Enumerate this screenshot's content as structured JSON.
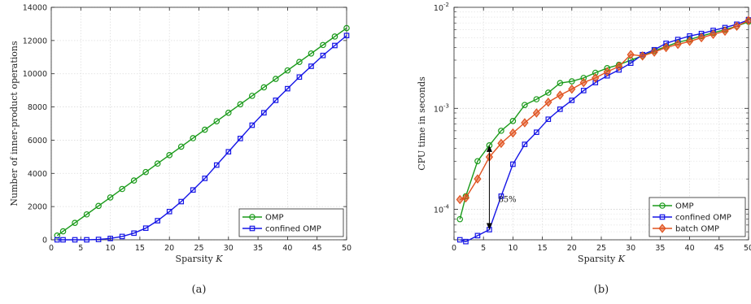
{
  "chart_data": [
    {
      "type": "line",
      "panel_label": "(a)",
      "xlabel": "Sparsity K",
      "ylabel": "Number of inner-product operations",
      "xlim": [
        0,
        50
      ],
      "ylim": [
        0,
        14000
      ],
      "xticks": [
        0,
        5,
        10,
        15,
        20,
        25,
        30,
        35,
        40,
        45,
        50
      ],
      "yticks": [
        0,
        2000,
        4000,
        6000,
        8000,
        10000,
        12000,
        14000
      ],
      "xtick_labels": [
        "0",
        "5",
        "10",
        "15",
        "20",
        "25",
        "30",
        "35",
        "40",
        "45",
        "50"
      ],
      "ytick_labels": [
        "0",
        "2000",
        "4000",
        "6000",
        "8000",
        "10000",
        "12000",
        "14000"
      ],
      "grid": true,
      "legend_position": "bottom-right",
      "series": [
        {
          "name": "OMP",
          "color": "#1a9a1a",
          "marker": "circle",
          "x": [
            1,
            2,
            4,
            6,
            8,
            10,
            12,
            14,
            16,
            18,
            20,
            22,
            24,
            26,
            28,
            30,
            32,
            34,
            36,
            38,
            40,
            42,
            44,
            46,
            48,
            50
          ],
          "y": [
            255,
            510,
            1020,
            1530,
            2040,
            2550,
            3060,
            3570,
            4080,
            4590,
            5100,
            5610,
            6120,
            6630,
            7140,
            7650,
            8160,
            8670,
            9180,
            9690,
            10200,
            10710,
            11220,
            11730,
            12240,
            12750
          ]
        },
        {
          "name": "confined OMP",
          "color": "#1515e6",
          "marker": "square",
          "x": [
            1,
            2,
            4,
            6,
            8,
            10,
            12,
            14,
            16,
            18,
            20,
            22,
            24,
            26,
            28,
            30,
            32,
            34,
            36,
            38,
            40,
            42,
            44,
            46,
            48,
            50
          ],
          "y": [
            0,
            0,
            0,
            0,
            20,
            80,
            200,
            400,
            700,
            1150,
            1700,
            2300,
            3000,
            3700,
            4500,
            5300,
            6100,
            6900,
            7650,
            8400,
            9100,
            9800,
            10450,
            11100,
            11700,
            12300
          ]
        }
      ]
    },
    {
      "type": "line",
      "panel_label": "(b)",
      "xlabel": "Sparsity K",
      "ylabel": "CPU time in seconds",
      "yscale": "log",
      "xlim": [
        0,
        50
      ],
      "ylim": [
        5e-05,
        0.01
      ],
      "xticks": [
        0,
        5,
        10,
        15,
        20,
        25,
        30,
        35,
        40,
        45,
        50
      ],
      "xtick_labels": [
        "0",
        "5",
        "10",
        "15",
        "20",
        "25",
        "30",
        "35",
        "40",
        "45",
        "50"
      ],
      "ytick_labels": [
        "10-4",
        "10-3",
        "10-2"
      ],
      "grid": true,
      "legend_position": "bottom-right",
      "annotation": "85%",
      "series": [
        {
          "name": "OMP",
          "color": "#1a9a1a",
          "marker": "circle",
          "x": [
            1,
            2,
            4,
            6,
            8,
            10,
            12,
            14,
            16,
            18,
            20,
            22,
            24,
            26,
            28,
            30,
            32,
            34,
            36,
            38,
            40,
            42,
            44,
            46,
            48,
            50
          ],
          "y": [
            8e-05,
            0.000135,
            0.0003,
            0.00043,
            0.0006,
            0.00075,
            0.00108,
            0.00123,
            0.00143,
            0.00178,
            0.00185,
            0.002,
            0.00225,
            0.0025,
            0.0027,
            0.003,
            0.0033,
            0.0037,
            0.0041,
            0.0045,
            0.0048,
            0.0052,
            0.0056,
            0.006,
            0.0065,
            0.0072
          ]
        },
        {
          "name": "confined OMP",
          "color": "#1515e6",
          "marker": "square",
          "x": [
            1,
            2,
            4,
            6,
            8,
            10,
            12,
            14,
            16,
            18,
            20,
            22,
            24,
            26,
            28,
            30,
            32,
            34,
            36,
            38,
            40,
            42,
            44,
            46,
            48,
            50
          ],
          "y": [
            5e-05,
            4.8e-05,
            5.5e-05,
            6.3e-05,
            0.000135,
            0.00028,
            0.00044,
            0.00058,
            0.00078,
            0.00098,
            0.0012,
            0.0015,
            0.0018,
            0.0021,
            0.0024,
            0.0028,
            0.0034,
            0.0038,
            0.0044,
            0.0048,
            0.0052,
            0.0055,
            0.0059,
            0.0063,
            0.0068,
            0.0075
          ]
        },
        {
          "name": "batch OMP",
          "color": "#e0521f",
          "marker": "diamond",
          "x": [
            1,
            2,
            4,
            6,
            8,
            10,
            12,
            14,
            16,
            18,
            20,
            22,
            24,
            26,
            28,
            30,
            32,
            34,
            36,
            38,
            40,
            42,
            44,
            46,
            48,
            50
          ],
          "y": [
            0.000125,
            0.00013,
            0.0002,
            0.00033,
            0.00045,
            0.00057,
            0.00072,
            0.0009,
            0.00115,
            0.00135,
            0.00155,
            0.0018,
            0.002,
            0.0023,
            0.0026,
            0.0034,
            0.0033,
            0.0036,
            0.004,
            0.0043,
            0.0046,
            0.005,
            0.0054,
            0.0058,
            0.0065,
            0.0074
          ]
        }
      ]
    }
  ]
}
